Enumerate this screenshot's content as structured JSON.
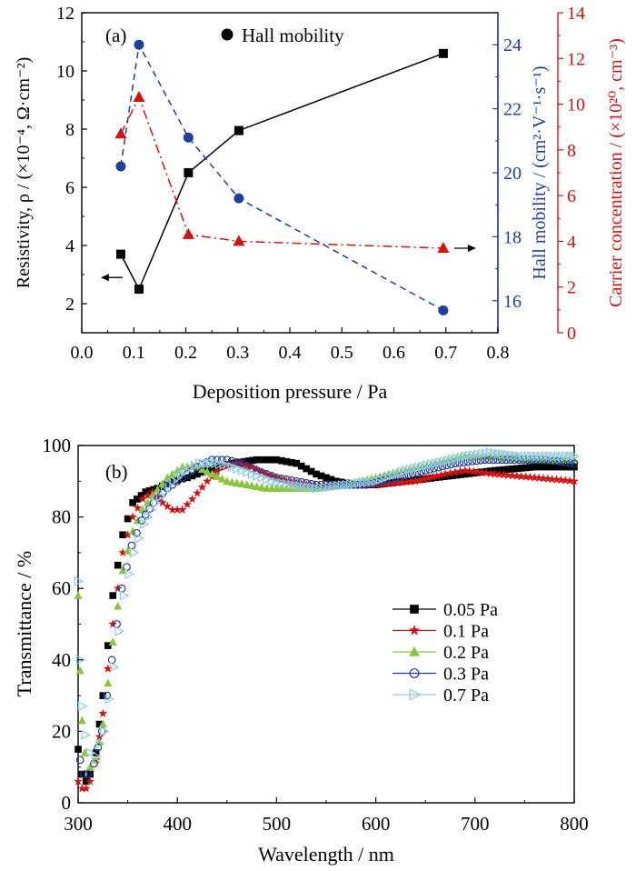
{
  "colors": {
    "black": "#000000",
    "blue": "#1f3f99",
    "red": "#d31212",
    "green": "#8cc63f",
    "lightblue": "#8ec9e6"
  },
  "chart_data": [
    {
      "type": "line",
      "panel_label": "(a)",
      "xlabel": "Deposition pressure / Pa",
      "xlim": [
        0.0,
        0.8
      ],
      "x_ticks": [
        "0.0",
        "0.1",
        "0.2",
        "0.3",
        "0.4",
        "0.5",
        "0.6",
        "0.7",
        "0.8"
      ],
      "axes": {
        "left": {
          "label": "Resistivity, ρ / (×10⁻⁴, Ω·cm⁻²)",
          "lim": [
            1,
            12
          ],
          "ticks": [
            "2",
            "4",
            "6",
            "8",
            "10",
            "12"
          ]
        },
        "right1": {
          "label": "Hall mobility / (cm²·V⁻¹·s⁻¹)",
          "lim": [
            15,
            25
          ],
          "ticks": [
            "16",
            "18",
            "20",
            "22",
            "24"
          ]
        },
        "right2": {
          "label": "Carrier concentration / (×10²⁰, cm⁻³)",
          "lim": [
            0,
            14
          ],
          "ticks": [
            "0",
            "2",
            "4",
            "6",
            "8",
            "10",
            "12",
            "14"
          ]
        }
      },
      "legend": {
        "position": "top-center",
        "entries": [
          "Hall mobility"
        ]
      },
      "series": [
        {
          "axis": "left",
          "marker": "square",
          "line": "solid",
          "color": "#000000",
          "x": [
            0.075,
            0.11,
            0.205,
            0.302,
            0.695
          ],
          "y": [
            3.7,
            2.5,
            6.5,
            7.95,
            10.6
          ]
        },
        {
          "axis": "right1",
          "marker": "circle",
          "line": "dashed",
          "color": "#1f3f99",
          "x": [
            0.075,
            0.11,
            0.205,
            0.302,
            0.695
          ],
          "y": [
            20.2,
            24.0,
            21.1,
            19.2,
            15.7
          ]
        },
        {
          "axis": "right2",
          "marker": "triangle",
          "line": "dashdot",
          "color": "#d31212",
          "x": [
            0.075,
            0.11,
            0.205,
            0.302,
            0.695
          ],
          "y": [
            8.7,
            10.3,
            4.3,
            4.0,
            3.7
          ]
        }
      ],
      "arrows": [
        {
          "points_to": "left",
          "x": 0.04,
          "y": 2.9
        },
        {
          "points_to": "right",
          "x": 0.695,
          "y": 3.7
        }
      ]
    },
    {
      "type": "scatter",
      "panel_label": "(b)",
      "xlabel": "Wavelength / nm",
      "ylabel": "Transmittance / %",
      "xlim": [
        300,
        800
      ],
      "ylim": [
        0,
        100
      ],
      "x_ticks": [
        "300",
        "400",
        "500",
        "600",
        "700",
        "800"
      ],
      "y_ticks": [
        "0",
        "20",
        "40",
        "60",
        "80",
        "100"
      ],
      "legend": {
        "position": "center-right"
      },
      "series": [
        {
          "name": "0.05 Pa",
          "marker": "filled-square",
          "color": "#000000",
          "points": [
            [
              300,
              15
            ],
            [
              304,
              8
            ],
            [
              308,
              6
            ],
            [
              312,
              8
            ],
            [
              318,
              14
            ],
            [
              325,
              30
            ],
            [
              335,
              58
            ],
            [
              345,
              75
            ],
            [
              355,
              84
            ],
            [
              368,
              87
            ],
            [
              380,
              88
            ],
            [
              395,
              90
            ],
            [
              410,
              91
            ],
            [
              430,
              93
            ],
            [
              455,
              95
            ],
            [
              480,
              96
            ],
            [
              500,
              96
            ],
            [
              520,
              95
            ],
            [
              540,
              92
            ],
            [
              560,
              90
            ],
            [
              580,
              89
            ],
            [
              600,
              89
            ],
            [
              630,
              90
            ],
            [
              660,
              91
            ],
            [
              690,
              92
            ],
            [
              720,
              93
            ],
            [
              760,
              94
            ],
            [
              800,
              94
            ]
          ]
        },
        {
          "name": "0.1 Pa",
          "marker": "filled-star",
          "color": "#d31212",
          "points": [
            [
              300,
              6
            ],
            [
              304,
              4
            ],
            [
              308,
              4
            ],
            [
              312,
              6
            ],
            [
              318,
              12
            ],
            [
              325,
              25
            ],
            [
              335,
              50
            ],
            [
              345,
              70
            ],
            [
              355,
              80
            ],
            [
              365,
              85
            ],
            [
              375,
              87
            ],
            [
              385,
              84
            ],
            [
              395,
              82
            ],
            [
              405,
              82
            ],
            [
              415,
              85
            ],
            [
              430,
              90
            ],
            [
              445,
              94
            ],
            [
              460,
              95
            ],
            [
              475,
              94
            ],
            [
              490,
              92
            ],
            [
              510,
              90
            ],
            [
              530,
              89
            ],
            [
              560,
              89
            ],
            [
              600,
              89
            ],
            [
              640,
              90
            ],
            [
              670,
              92
            ],
            [
              690,
              93
            ],
            [
              720,
              92
            ],
            [
              760,
              91
            ],
            [
              800,
              90
            ]
          ]
        },
        {
          "name": "0.2 Pa",
          "marker": "filled-triangle-up",
          "color": "#8cc63f",
          "points": [
            [
              300,
              58
            ],
            [
              302,
              37
            ],
            [
              304,
              23
            ],
            [
              307,
              14
            ],
            [
              312,
              10
            ],
            [
              318,
              12
            ],
            [
              325,
              22
            ],
            [
              335,
              45
            ],
            [
              345,
              65
            ],
            [
              355,
              76
            ],
            [
              365,
              82
            ],
            [
              375,
              86
            ],
            [
              390,
              91
            ],
            [
              405,
              94
            ],
            [
              420,
              94
            ],
            [
              435,
              92
            ],
            [
              450,
              90
            ],
            [
              470,
              89
            ],
            [
              490,
              88
            ],
            [
              510,
              88
            ],
            [
              540,
              88
            ],
            [
              570,
              89
            ],
            [
              600,
              91
            ],
            [
              630,
              93
            ],
            [
              660,
              95
            ],
            [
              690,
              97
            ],
            [
              720,
              97
            ],
            [
              760,
              96
            ],
            [
              800,
              96
            ]
          ]
        },
        {
          "name": "0.3 Pa",
          "marker": "open-circle",
          "color": "#1f3f99",
          "points": [
            [
              302,
              12
            ],
            [
              306,
              8
            ],
            [
              310,
              8
            ],
            [
              316,
              11
            ],
            [
              324,
              20
            ],
            [
              334,
              40
            ],
            [
              344,
              60
            ],
            [
              354,
              72
            ],
            [
              364,
              79
            ],
            [
              376,
              84
            ],
            [
              390,
              88
            ],
            [
              405,
              91
            ],
            [
              420,
              94
            ],
            [
              435,
              96
            ],
            [
              450,
              96
            ],
            [
              465,
              95
            ],
            [
              480,
              93
            ],
            [
              500,
              91
            ],
            [
              520,
              90
            ],
            [
              540,
              89
            ],
            [
              560,
              89
            ],
            [
              590,
              89
            ],
            [
              620,
              91
            ],
            [
              650,
              93
            ],
            [
              680,
              95
            ],
            [
              710,
              96
            ],
            [
              740,
              96
            ],
            [
              770,
              96
            ],
            [
              800,
              95
            ]
          ]
        },
        {
          "name": "0.7 Pa",
          "marker": "open-triangle-right",
          "color": "#8ec9e6",
          "points": [
            [
              300,
              62
            ],
            [
              302,
              40
            ],
            [
              304,
              27
            ],
            [
              307,
              19
            ],
            [
              312,
              14
            ],
            [
              318,
              13
            ],
            [
              326,
              20
            ],
            [
              336,
              38
            ],
            [
              346,
              58
            ],
            [
              356,
              70
            ],
            [
              366,
              78
            ],
            [
              378,
              84
            ],
            [
              392,
              89
            ],
            [
              408,
              93
            ],
            [
              422,
              95
            ],
            [
              438,
              95
            ],
            [
              455,
              94
            ],
            [
              475,
              92
            ],
            [
              495,
              90
            ],
            [
              515,
              89
            ],
            [
              540,
              88
            ],
            [
              570,
              89
            ],
            [
              600,
              90
            ],
            [
              630,
              93
            ],
            [
              660,
              95
            ],
            [
              690,
              97
            ],
            [
              715,
              98
            ],
            [
              745,
              97
            ],
            [
              775,
              97
            ],
            [
              800,
              97
            ]
          ]
        }
      ]
    }
  ]
}
